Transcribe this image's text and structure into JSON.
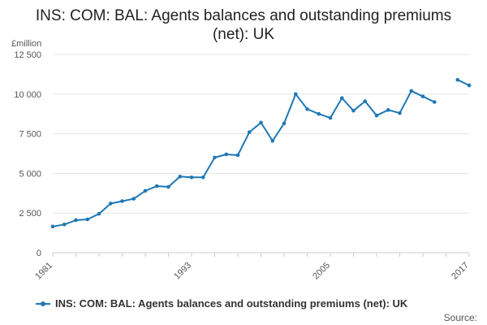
{
  "title_line1": "INS: COM: BAL: Agents balances and outstanding premiums",
  "title_line2": "(net): UK",
  "source_label": "Source:",
  "colors": {
    "series": "#1f78b4",
    "grid": "#e6e6e6",
    "axis": "#cccccc"
  },
  "chart_data": {
    "type": "line",
    "title": "INS: COM: BAL: Agents balances and outstanding premiums (net): UK",
    "ylabel": "£million",
    "xlabel": "",
    "xlim": [
      1981,
      2017
    ],
    "ylim": [
      0,
      12500
    ],
    "yticks": [
      0,
      2500,
      5000,
      7500,
      10000,
      12500
    ],
    "ytick_labels": [
      "0",
      "2 500",
      "5 000",
      "7 500",
      "10 000",
      "12 500"
    ],
    "xticks": [
      1981,
      1993,
      2005,
      2017
    ],
    "xtick_labels": [
      "1981",
      "1993",
      "2005",
      "2017"
    ],
    "grid": "horizontal",
    "legend_position": "bottom",
    "series": [
      {
        "name": "INS: COM: BAL: Agents balances and outstanding premiums (net): UK",
        "color": "#1f78b4",
        "segments": [
          {
            "x": [
              1981,
              1982,
              1983,
              1984,
              1985,
              1986,
              1987,
              1988,
              1989,
              1990,
              1991,
              1992,
              1993,
              1994,
              1995,
              1996,
              1997,
              1998,
              1999,
              2000,
              2001,
              2002,
              2003,
              2004,
              2005,
              2006,
              2007,
              2008,
              2009,
              2010,
              2011,
              2012,
              2013,
              2014
            ],
            "y": [
              1650,
              1780,
              2050,
              2100,
              2450,
              3100,
              3250,
              3400,
              3900,
              4200,
              4150,
              4800,
              4750,
              4750,
              6000,
              6200,
              6150,
              7600,
              8200,
              7050,
              8150,
              10000,
              9050,
              8750,
              8500,
              9750,
              8950,
              9550,
              8650,
              9000,
              8800,
              10200,
              9850,
              9500
            ]
          },
          {
            "x": [
              2016,
              2017
            ],
            "y": [
              10900,
              10550
            ]
          }
        ]
      }
    ]
  }
}
